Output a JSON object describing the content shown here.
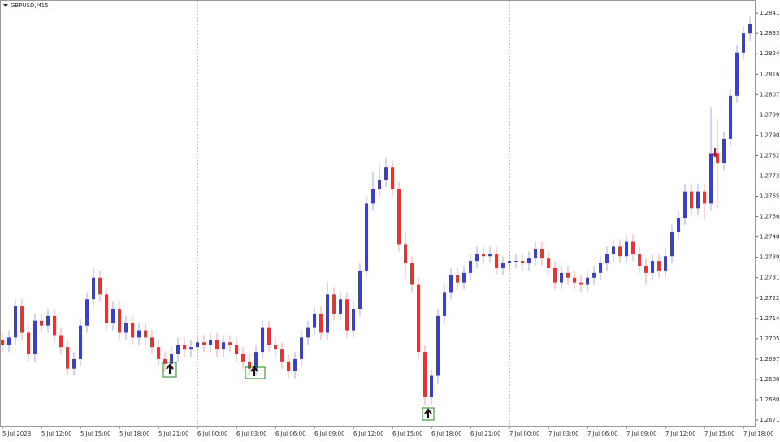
{
  "chart_data": {
    "type": "candlestick",
    "title": "GBPUSD,M15",
    "categories": [
      "5 Jul 2023",
      null,
      null,
      null,
      null,
      null,
      "5 Jul 12:00",
      null,
      null,
      null,
      null,
      null,
      "5 Jul 15:00",
      null,
      null,
      null,
      null,
      null,
      "5 Jul 18:00",
      null,
      null,
      null,
      null,
      null,
      "5 Jul 21:00",
      null,
      null,
      null,
      null,
      null,
      "6 Jul 00:00",
      null,
      null,
      null,
      null,
      null,
      "6 Jul 03:00",
      null,
      null,
      null,
      null,
      null,
      "6 Jul 06:00",
      null,
      null,
      null,
      null,
      null,
      "6 Jul 09:00",
      null,
      null,
      null,
      null,
      null,
      "6 Jul 12:00",
      null,
      null,
      null,
      null,
      null,
      "6 Jul 15:00",
      null,
      null,
      null,
      null,
      null,
      "6 Jul 18:00",
      null,
      null,
      null,
      null,
      null,
      "6 Jul 21:00",
      null,
      null,
      null,
      null,
      null,
      "7 Jul 00:00",
      null,
      null,
      null,
      null,
      null,
      "7 Jul 03:00",
      null,
      null,
      null,
      null,
      null,
      "7 Jul 06:00",
      null,
      null,
      null,
      null,
      null,
      "7 Jul 09:00",
      null,
      null,
      null,
      null,
      null,
      "7 Jul 12:00",
      null,
      null,
      null,
      null,
      null,
      "7 Jul 15:00",
      null,
      null,
      null,
      null,
      null,
      "7 Jul 18:00",
      null
    ],
    "open": [
      1.2705,
      1.2703,
      1.2706,
      1.2719,
      1.2708,
      1.2699,
      1.2713,
      1.2711,
      1.2715,
      1.2707,
      1.2702,
      1.2693,
      1.2697,
      1.2711,
      1.2722,
      1.2731,
      1.2724,
      1.2712,
      1.2718,
      1.2708,
      1.2712,
      1.2706,
      1.2709,
      1.2706,
      1.2702,
      1.2697,
      1.2695,
      1.2699,
      1.2703,
      1.2701,
      1.2702,
      1.2704,
      1.2703,
      1.2705,
      1.2701,
      1.2704,
      1.2703,
      1.2699,
      1.2696,
      1.2693,
      1.27,
      1.271,
      1.2703,
      1.2701,
      1.2696,
      1.2692,
      1.2697,
      1.2706,
      1.271,
      1.2716,
      1.2708,
      1.2724,
      1.2716,
      1.2722,
      1.2709,
      1.2718,
      1.2734,
      1.2762,
      1.2768,
      1.2772,
      1.2777,
      1.2768,
      1.2745,
      1.2737,
      1.2728,
      1.27,
      1.2681,
      1.269,
      1.2715,
      1.2725,
      1.2732,
      1.2729,
      1.2733,
      1.2738,
      1.2741,
      1.274,
      1.2741,
      1.2735,
      1.2737,
      1.2738,
      1.2738,
      1.2737,
      1.2739,
      1.2743,
      1.2739,
      1.2735,
      1.2729,
      1.2733,
      1.2731,
      1.2729,
      1.2728,
      1.2731,
      1.2733,
      1.2737,
      1.2741,
      1.2744,
      1.274,
      1.2746,
      1.2741,
      1.2736,
      1.2733,
      1.2738,
      1.2734,
      1.274,
      1.275,
      1.2756,
      1.2767,
      1.276,
      1.2767,
      1.2762,
      1.2783,
      1.2779,
      1.2789,
      1.2807,
      1.2825,
      1.2833
    ],
    "high": [
      1.2708,
      1.2709,
      1.2722,
      1.2722,
      1.2711,
      1.2716,
      1.2716,
      1.2718,
      1.2718,
      1.271,
      1.2705,
      1.27,
      1.2714,
      1.2725,
      1.2735,
      1.2734,
      1.2727,
      1.2721,
      1.2721,
      1.2715,
      1.2715,
      1.2712,
      1.2712,
      1.2709,
      1.2705,
      1.27,
      1.2702,
      1.2706,
      1.2706,
      1.2705,
      1.2707,
      1.2707,
      1.2708,
      1.2708,
      1.2707,
      1.2707,
      1.2706,
      1.2702,
      1.2699,
      1.2703,
      1.2713,
      1.2713,
      1.2706,
      1.2704,
      1.2699,
      1.27,
      1.2709,
      1.2713,
      1.2719,
      1.2719,
      1.2729,
      1.2727,
      1.2725,
      1.2725,
      1.2721,
      1.2737,
      1.2765,
      1.2775,
      1.2778,
      1.2781,
      1.278,
      1.2771,
      1.275,
      1.274,
      1.2731,
      1.2703,
      1.2693,
      1.2718,
      1.2728,
      1.2735,
      1.2735,
      1.2736,
      1.2741,
      1.2744,
      1.2744,
      1.2744,
      1.2744,
      1.274,
      1.2741,
      1.2741,
      1.2741,
      1.2742,
      1.2746,
      1.2746,
      1.2742,
      1.2738,
      1.2736,
      1.2736,
      1.2734,
      1.2732,
      1.2734,
      1.2736,
      1.274,
      1.2744,
      1.2747,
      1.2747,
      1.2749,
      1.2749,
      1.2744,
      1.2739,
      1.2741,
      1.2741,
      1.2743,
      1.2753,
      1.2759,
      1.277,
      1.277,
      1.277,
      1.277,
      1.2802,
      1.2797,
      1.2792,
      1.281,
      1.2828,
      1.2836,
      1.284
    ],
    "low": [
      1.27,
      1.27,
      1.2703,
      1.2705,
      1.2696,
      1.2696,
      1.2708,
      1.2708,
      1.2704,
      1.2699,
      1.269,
      1.269,
      1.2694,
      1.2708,
      1.2719,
      1.2721,
      1.2709,
      1.2709,
      1.2705,
      1.2705,
      1.2703,
      1.2703,
      1.2703,
      1.2699,
      1.2694,
      1.2692,
      1.2692,
      1.2696,
      1.2698,
      1.2698,
      1.2699,
      1.27,
      1.27,
      1.2698,
      1.2698,
      1.27,
      1.2696,
      1.2693,
      1.269,
      1.269,
      1.2697,
      1.27,
      1.2698,
      1.2693,
      1.2689,
      1.2689,
      1.2694,
      1.2703,
      1.2707,
      1.2705,
      1.2705,
      1.2713,
      1.2713,
      1.2706,
      1.2706,
      1.2715,
      1.2731,
      1.2759,
      1.2765,
      1.2769,
      1.2765,
      1.2742,
      1.2731,
      1.2725,
      1.2697,
      1.2678,
      1.2678,
      1.2687,
      1.2712,
      1.2722,
      1.2726,
      1.2726,
      1.273,
      1.2735,
      1.2737,
      1.2737,
      1.2732,
      1.2732,
      1.2734,
      1.2735,
      1.2734,
      1.2734,
      1.2736,
      1.2736,
      1.2732,
      1.2726,
      1.2726,
      1.2728,
      1.2726,
      1.2725,
      1.2725,
      1.2728,
      1.273,
      1.2734,
      1.2738,
      1.2737,
      1.2737,
      1.2738,
      1.2733,
      1.2728,
      1.273,
      1.2731,
      1.2731,
      1.2737,
      1.2747,
      1.2753,
      1.2757,
      1.2757,
      1.2755,
      1.2759,
      1.276,
      1.2776,
      1.2786,
      1.2804,
      1.2822,
      1.283
    ],
    "close": [
      1.2703,
      1.2706,
      1.2719,
      1.2708,
      1.2699,
      1.2713,
      1.2711,
      1.2715,
      1.2707,
      1.2702,
      1.2693,
      1.2697,
      1.2711,
      1.2722,
      1.2731,
      1.2724,
      1.2712,
      1.2718,
      1.2708,
      1.2712,
      1.2706,
      1.2709,
      1.2706,
      1.2702,
      1.2697,
      1.2695,
      1.2699,
      1.2703,
      1.2701,
      1.2702,
      1.2704,
      1.2703,
      1.2705,
      1.2701,
      1.2704,
      1.2703,
      1.2699,
      1.2696,
      1.2693,
      1.27,
      1.271,
      1.2703,
      1.2701,
      1.2696,
      1.2692,
      1.2697,
      1.2706,
      1.271,
      1.2716,
      1.2708,
      1.2724,
      1.2716,
      1.2722,
      1.2709,
      1.2718,
      1.2734,
      1.2762,
      1.2768,
      1.2772,
      1.2777,
      1.2768,
      1.2745,
      1.2737,
      1.2728,
      1.27,
      1.2681,
      1.269,
      1.2715,
      1.2725,
      1.2732,
      1.2729,
      1.2733,
      1.2738,
      1.2741,
      1.274,
      1.2741,
      1.2735,
      1.2737,
      1.2738,
      1.2738,
      1.2737,
      1.2739,
      1.2743,
      1.2739,
      1.2735,
      1.2729,
      1.2733,
      1.2731,
      1.2729,
      1.2728,
      1.2731,
      1.2733,
      1.2737,
      1.2741,
      1.2744,
      1.274,
      1.2746,
      1.2741,
      1.2736,
      1.2733,
      1.2738,
      1.2734,
      1.274,
      1.275,
      1.2756,
      1.2767,
      1.276,
      1.2767,
      1.2762,
      1.2783,
      1.2779,
      1.2789,
      1.2807,
      1.2825,
      1.2833,
      1.2837
    ],
    "up_color": "#3a3fd0",
    "down_color": "#ee3030",
    "ylim": [
      1.26688,
      1.28463
    ],
    "yticks": [
      1.28415,
      {
        "value": 1.2833,
        "label": "1.28330"
      },
      1.28245,
      1.2816,
      1.28075,
      {
        "value": 1.2799,
        "label": "1.27990"
      },
      1.27905,
      {
        "value": 1.2782,
        "label": "1.27820"
      },
      1.27735,
      {
        "value": 1.2765,
        "label": "1.27650"
      },
      1.27565,
      {
        "value": 1.2748,
        "label": "1.27480"
      },
      1.27395,
      {
        "value": 1.2731,
        "label": "1.27310"
      },
      1.27225,
      {
        "value": 1.2714,
        "label": "1.27140"
      },
      1.27055,
      {
        "value": 1.2697,
        "label": "1.26970"
      },
      1.26885,
      {
        "value": 1.268,
        "label": "1.26800"
      },
      1.26715
    ]
  }
}
